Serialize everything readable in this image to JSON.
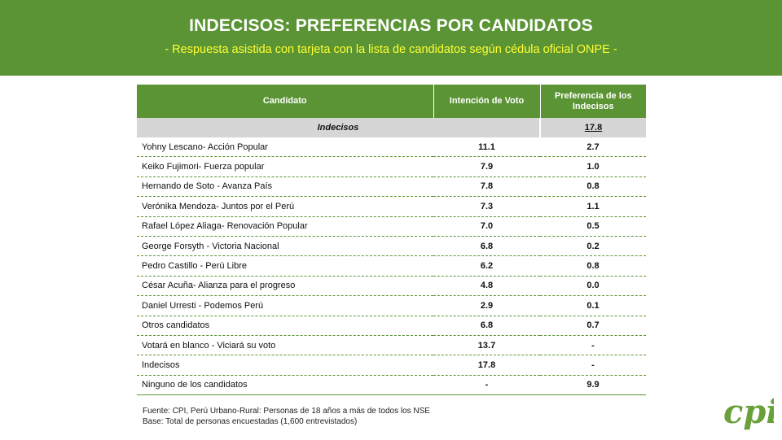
{
  "header": {
    "title": "INDECISOS: PREFERENCIAS POR CANDIDATOS",
    "subtitle": "- Respuesta asistida con tarjeta con la lista de candidatos según cédula oficial ONPE -"
  },
  "table": {
    "columns": [
      "Candidato",
      "Intención de Voto",
      "Preferencia de los Indecisos"
    ],
    "highlight": {
      "label": "Indecisos",
      "value": "17.8"
    },
    "rows": [
      {
        "name": "Yohny Lescano- Acción Popular",
        "intencion": "11.1",
        "preferencia": "2.7"
      },
      {
        "name": "Keiko Fujimori- Fuerza popular",
        "intencion": "7.9",
        "preferencia": "1.0"
      },
      {
        "name": "Hernando de Soto - Avanza País",
        "intencion": "7.8",
        "preferencia": "0.8"
      },
      {
        "name": "Verónika Mendoza- Juntos por el Perú",
        "intencion": "7.3",
        "preferencia": "1.1"
      },
      {
        "name": "Rafael López Aliaga- Renovación Popular",
        "intencion": "7.0",
        "preferencia": "0.5"
      },
      {
        "name": "George Forsyth - Victoria Nacional",
        "intencion": "6.8",
        "preferencia": "0.2"
      },
      {
        "name": "Pedro Castillo - Perú Libre",
        "intencion": "6.2",
        "preferencia": "0.8"
      },
      {
        "name": "César Acuña- Alianza para el progreso",
        "intencion": "4.8",
        "preferencia": "0.0"
      },
      {
        "name": "Daniel Urresti - Podemos Perú",
        "intencion": "2.9",
        "preferencia": "0.1"
      },
      {
        "name": "Otros candidatos",
        "intencion": "6.8",
        "preferencia": "0.7"
      },
      {
        "name": "Votará en blanco - Viciará su voto",
        "intencion": "13.7",
        "preferencia": "-"
      },
      {
        "name": "Indecisos",
        "intencion": "17.8",
        "preferencia": "-"
      },
      {
        "name": "Ninguno de los candidatos",
        "intencion": "-",
        "preferencia": "9.9"
      }
    ]
  },
  "footer": {
    "source": "Fuente: CPI, Perú Urbano-Rural: Personas de 18 años a más de todos los NSE",
    "base": "Base: Total de personas encuestadas (1,600 entrevistados)"
  },
  "logo": {
    "text": "cpi",
    "color": "#6aa03a"
  },
  "colors": {
    "brand_green": "#5b9434",
    "subtitle_yellow": "#ffff33",
    "highlight_gray": "#d6d6d6"
  }
}
